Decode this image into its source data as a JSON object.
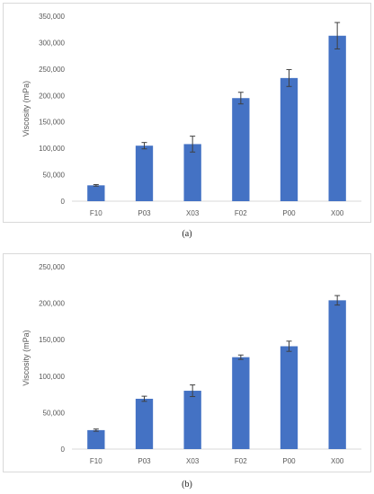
{
  "chart_data": [
    {
      "type": "bar",
      "caption": "(a)",
      "ylabel": "Viscosity (mPa)",
      "categories": [
        "F10",
        "P03",
        "X03",
        "F02",
        "P00",
        "X00"
      ],
      "values": [
        30000,
        105000,
        108000,
        195000,
        233000,
        313000
      ],
      "errors": [
        1500,
        6000,
        15000,
        11000,
        16000,
        25000
      ],
      "ylim": [
        0,
        350000
      ],
      "yticks": [
        "0",
        "50,000",
        "100,000",
        "150,000",
        "200,000",
        "250,000",
        "300,000",
        "350,000"
      ],
      "grid": false,
      "bar_color": "#4472c4"
    },
    {
      "type": "bar",
      "caption": "(b)",
      "ylabel": "Viscosity (mPa)",
      "categories": [
        "F10",
        "P03",
        "X03",
        "F02",
        "P00",
        "X00"
      ],
      "values": [
        26000,
        69000,
        80000,
        126000,
        141000,
        204000
      ],
      "errors": [
        1500,
        3500,
        8000,
        3000,
        7000,
        6500
      ],
      "ylim": [
        0,
        250000
      ],
      "yticks": [
        "0",
        "50,000",
        "100,000",
        "150,000",
        "200,000",
        "250,000"
      ],
      "grid": false,
      "bar_color": "#4472c4"
    }
  ]
}
